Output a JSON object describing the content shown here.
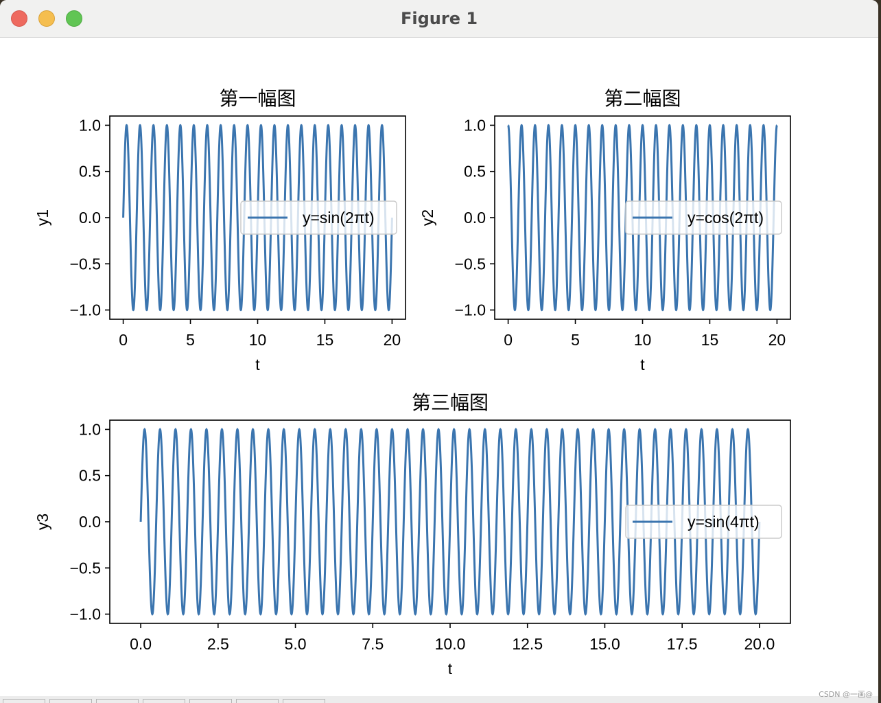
{
  "window": {
    "title": "Figure 1",
    "watermark": "CSDN @一画@"
  },
  "toolbar": {
    "buttons": [
      "",
      "",
      "",
      "",
      "",
      "",
      ""
    ]
  },
  "style": {
    "line_color": "#3b75af",
    "axis_color": "#000000",
    "legend_edge": "#cccccc"
  },
  "chart_data": [
    {
      "type": "line",
      "title": "第一幅图",
      "xlabel": "t",
      "ylabel": "y1",
      "function": "sin(2*pi*t)",
      "freq": 1,
      "phase": "sin",
      "t_range": [
        0,
        20
      ],
      "xlim": [
        -1,
        21
      ],
      "ylim": [
        -1.1,
        1.1
      ],
      "xticks": [
        0,
        5,
        10,
        15,
        20
      ],
      "xtick_labels": [
        "0",
        "5",
        "10",
        "15",
        "20"
      ],
      "yticks": [
        1.0,
        0.5,
        0.0,
        -0.5,
        -1.0
      ],
      "ytick_labels": [
        "1.0",
        "0.5",
        "0.0",
        "−0.5",
        "−1.0"
      ],
      "legend": [
        "y=sin(2πt)"
      ],
      "legend_position": "center right",
      "series": [
        {
          "name": "y=sin(2πt)",
          "peaks": 20,
          "troughs": 20,
          "start": 0.0,
          "end": 0.0
        }
      ]
    },
    {
      "type": "line",
      "title": "第二幅图",
      "xlabel": "t",
      "ylabel": "y2",
      "function": "cos(2*pi*t)",
      "freq": 1,
      "phase": "cos",
      "t_range": [
        0,
        20
      ],
      "xlim": [
        -1,
        21
      ],
      "ylim": [
        -1.1,
        1.1
      ],
      "xticks": [
        0,
        5,
        10,
        15,
        20
      ],
      "xtick_labels": [
        "0",
        "5",
        "10",
        "15",
        "20"
      ],
      "yticks": [
        1.0,
        0.5,
        0.0,
        -0.5,
        -1.0
      ],
      "ytick_labels": [
        "1.0",
        "0.5",
        "0.0",
        "−0.5",
        "−1.0"
      ],
      "legend": [
        "y=cos(2πt)"
      ],
      "legend_position": "center right",
      "series": [
        {
          "name": "y=cos(2πt)",
          "peaks": 21,
          "troughs": 20,
          "start": 1.0,
          "end": 1.0
        }
      ]
    },
    {
      "type": "line",
      "title": "第三幅图",
      "xlabel": "t",
      "ylabel": "y3",
      "function": "sin(4*pi*t)",
      "freq": 2,
      "phase": "sin",
      "t_range": [
        0,
        20
      ],
      "xlim": [
        -1,
        21
      ],
      "ylim": [
        -1.1,
        1.1
      ],
      "xticks": [
        0,
        2.5,
        5,
        7.5,
        10,
        12.5,
        15,
        17.5,
        20
      ],
      "xtick_labels": [
        "0.0",
        "2.5",
        "5.0",
        "7.5",
        "10.0",
        "12.5",
        "15.0",
        "17.5",
        "20.0"
      ],
      "yticks": [
        1.0,
        0.5,
        0.0,
        -0.5,
        -1.0
      ],
      "ytick_labels": [
        "1.0",
        "0.5",
        "0.0",
        "−0.5",
        "−1.0"
      ],
      "legend": [
        "y=sin(4πt)"
      ],
      "legend_position": "center right",
      "series": [
        {
          "name": "y=sin(4πt)",
          "peaks": 40,
          "troughs": 40,
          "start": 0.0,
          "end": 0.0
        }
      ]
    }
  ]
}
